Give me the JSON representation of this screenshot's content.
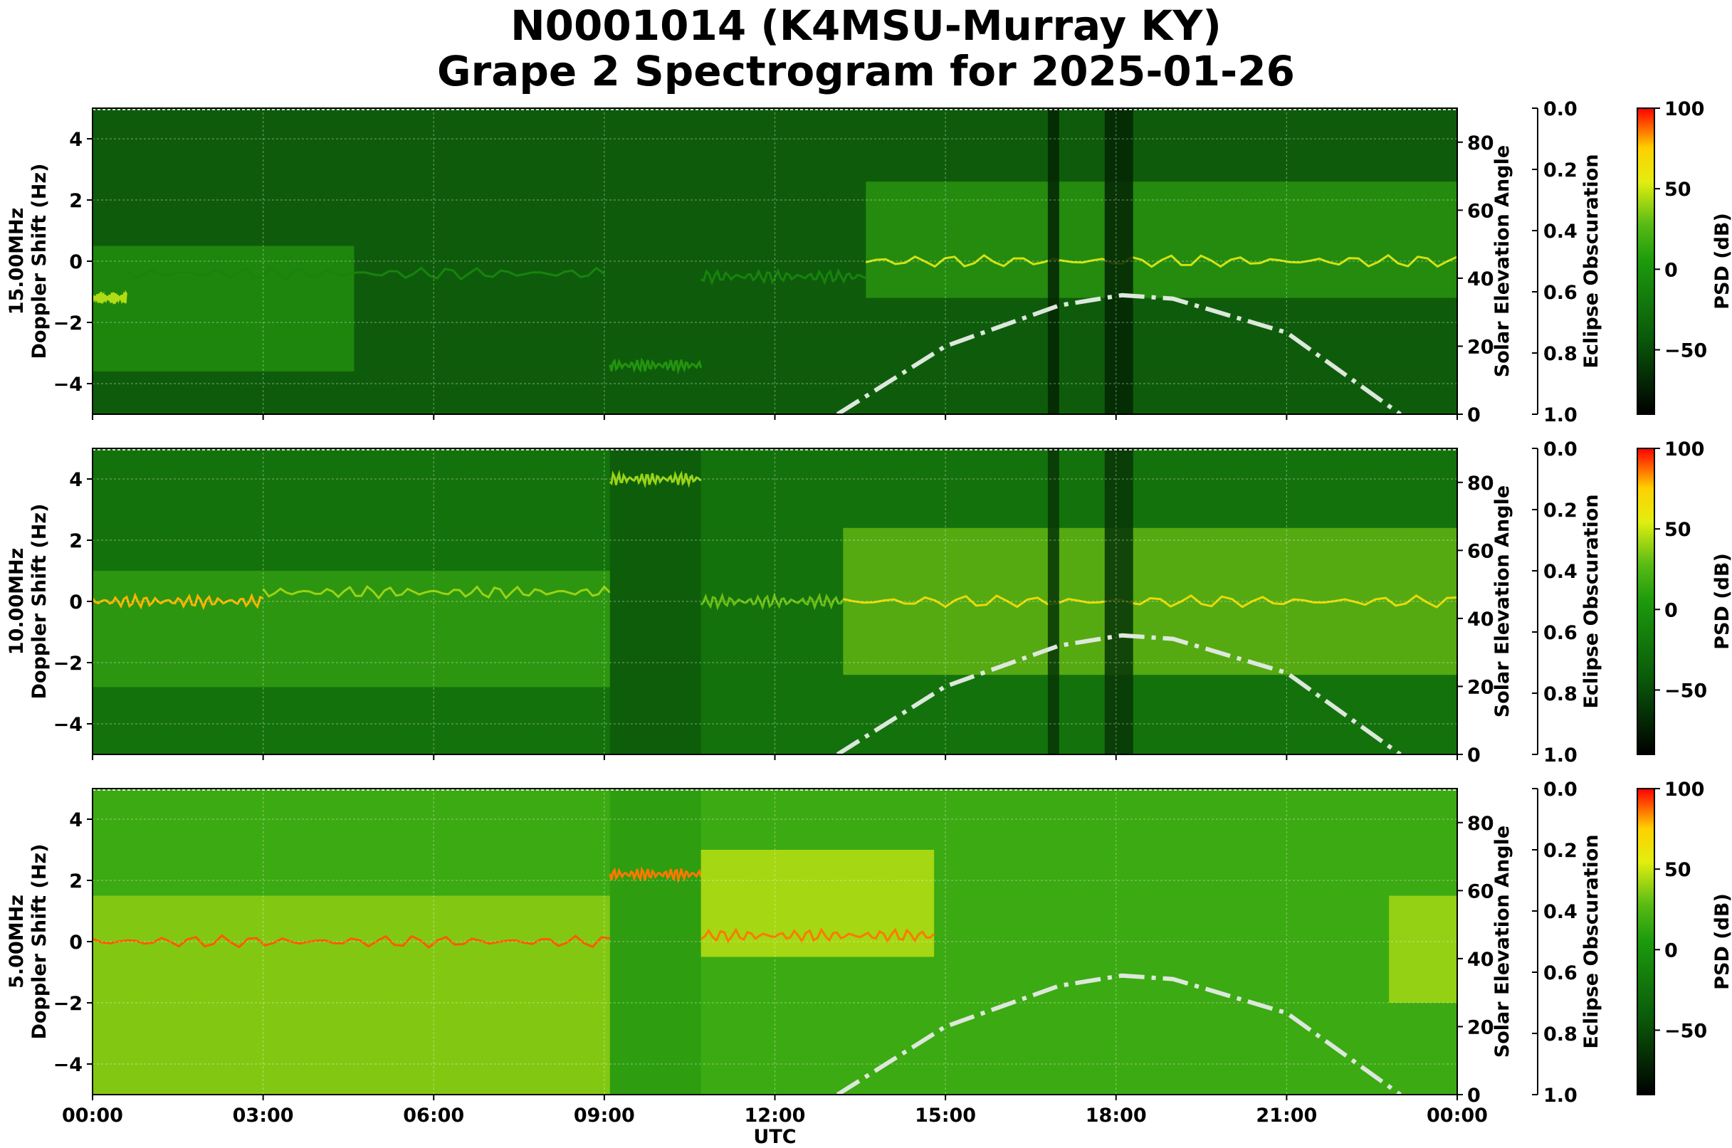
{
  "title": "N0001014 (K4MSU-Murray KY)",
  "subtitle": "Grape 2 Spectrogram for 2025-01-26",
  "chart_data": [
    {
      "type": "heatmap",
      "panel_label": "15.00MHz",
      "ylabel": "Doppler Shift (Hz)",
      "xlabel": "",
      "ylim": [
        -5,
        5
      ],
      "xlim_hours": [
        0,
        24
      ],
      "yticks": [
        4,
        2,
        0,
        -2,
        -4
      ],
      "secondary_y": {
        "label": "Solar Elevation Angle",
        "ylim": [
          0,
          90
        ],
        "ticks": [
          0,
          20,
          40,
          60,
          80
        ]
      },
      "eclipse_axis": {
        "label": "Eclipse Obscuration",
        "ticks": [
          "0.0",
          "0.2",
          "0.4",
          "0.6",
          "0.8",
          "1.0"
        ]
      },
      "colorbar": {
        "label": "PSD (dB)",
        "ticks": [
          "100",
          "50",
          "0",
          "−50"
        ],
        "range": [
          -90,
          100
        ]
      },
      "base_level_db": -38,
      "features": [
        {
          "kind": "band",
          "t0": 0,
          "t1": 4.6,
          "f0": -3.6,
          "f1": 0.5,
          "db": -5
        },
        {
          "kind": "line",
          "t0": 0,
          "t1": 0.6,
          "f": -1.2,
          "db": 35
        },
        {
          "kind": "line",
          "t0": 0.6,
          "t1": 9.0,
          "f": -0.4,
          "db": -15
        },
        {
          "kind": "line",
          "t0": 9.1,
          "t1": 10.7,
          "f": -3.4,
          "db": -5
        },
        {
          "kind": "line",
          "t0": 10.7,
          "t1": 13.6,
          "f": -0.5,
          "db": -15
        },
        {
          "kind": "band",
          "t0": 13.6,
          "t1": 24,
          "f0": -1.2,
          "f1": 2.6,
          "db": 0
        },
        {
          "kind": "line",
          "t0": 13.6,
          "t1": 24,
          "f": 0.0,
          "db": 45
        },
        {
          "kind": "dark",
          "t0": 16.8,
          "t1": 17.0,
          "db": -70
        },
        {
          "kind": "dark",
          "t0": 17.8,
          "t1": 18.3,
          "db": -70
        }
      ],
      "solar_elevation": {
        "t": [
          13.1,
          15.0,
          17.0,
          18.1,
          19.0,
          21.0,
          23.0
        ],
        "deg": [
          0,
          20,
          32,
          35,
          34,
          24,
          0
        ]
      }
    },
    {
      "type": "heatmap",
      "panel_label": "10.00MHz",
      "ylabel": "Doppler Shift (Hz)",
      "xlabel": "",
      "ylim": [
        -5,
        5
      ],
      "xlim_hours": [
        0,
        24
      ],
      "yticks": [
        4,
        2,
        0,
        -2,
        -4
      ],
      "secondary_y": {
        "label": "Solar Elevation Angle",
        "ylim": [
          0,
          90
        ],
        "ticks": [
          0,
          20,
          40,
          60,
          80
        ]
      },
      "eclipse_axis": {
        "label": "Eclipse Obscuration",
        "ticks": [
          "0.0",
          "0.2",
          "0.4",
          "0.6",
          "0.8",
          "1.0"
        ]
      },
      "colorbar": {
        "label": "PSD (dB)",
        "ticks": [
          "100",
          "50",
          "0",
          "−50"
        ],
        "range": [
          -90,
          100
        ]
      },
      "base_level_db": -25,
      "features": [
        {
          "kind": "band",
          "t0": 0,
          "t1": 9.1,
          "f0": -2.8,
          "f1": 1.0,
          "db": 5
        },
        {
          "kind": "line",
          "t0": 0,
          "t1": 3.0,
          "f": 0.0,
          "db": 70
        },
        {
          "kind": "line",
          "t0": 3.0,
          "t1": 9.1,
          "f": 0.3,
          "db": 30
        },
        {
          "kind": "dark",
          "t0": 9.1,
          "t1": 10.7,
          "db": -40
        },
        {
          "kind": "line",
          "t0": 9.1,
          "t1": 10.7,
          "f": 4.0,
          "db": 30
        },
        {
          "kind": "line",
          "t0": 10.7,
          "t1": 13.2,
          "f": 0.0,
          "db": 20
        },
        {
          "kind": "band",
          "t0": 13.2,
          "t1": 24,
          "f0": -2.4,
          "f1": 2.4,
          "db": 20
        },
        {
          "kind": "line",
          "t0": 13.2,
          "t1": 24,
          "f": 0.0,
          "db": 55
        },
        {
          "kind": "dark",
          "t0": 16.8,
          "t1": 17.0,
          "db": -60
        },
        {
          "kind": "dark",
          "t0": 17.8,
          "t1": 18.3,
          "db": -60
        }
      ],
      "solar_elevation": {
        "t": [
          13.1,
          15.0,
          17.0,
          18.1,
          19.0,
          21.0,
          23.0
        ],
        "deg": [
          0,
          20,
          32,
          35,
          34,
          24,
          0
        ]
      }
    },
    {
      "type": "heatmap",
      "panel_label": "5.00MHz",
      "ylabel": "Doppler Shift (Hz)",
      "xlabel": "UTC",
      "ylim": [
        -5,
        5
      ],
      "xlim_hours": [
        0,
        24
      ],
      "xticks": [
        "00:00",
        "03:00",
        "06:00",
        "09:00",
        "12:00",
        "15:00",
        "18:00",
        "21:00",
        "00:00"
      ],
      "yticks": [
        4,
        2,
        0,
        -2,
        -4
      ],
      "secondary_y": {
        "label": "Solar Elevation Angle",
        "ylim": [
          0,
          90
        ],
        "ticks": [
          0,
          20,
          40,
          60,
          80
        ]
      },
      "eclipse_axis": {
        "label": "Eclipse Obscuration",
        "ticks": [
          "0.0",
          "0.2",
          "0.4",
          "0.6",
          "0.8",
          "1.0"
        ]
      },
      "colorbar": {
        "label": "PSD (dB)",
        "ticks": [
          "100",
          "50",
          "0",
          "−50"
        ],
        "range": [
          -90,
          100
        ]
      },
      "base_level_db": 10,
      "features": [
        {
          "kind": "band",
          "t0": 0,
          "t1": 9.1,
          "f0": -5,
          "f1": 1.5,
          "db": 30
        },
        {
          "kind": "line",
          "t0": 0,
          "t1": 9.1,
          "f": 0.0,
          "db": 85
        },
        {
          "kind": "dark",
          "t0": 9.1,
          "t1": 10.7,
          "db": 0
        },
        {
          "kind": "line",
          "t0": 9.1,
          "t1": 10.7,
          "f": 2.2,
          "db": 80
        },
        {
          "kind": "band",
          "t0": 10.7,
          "t1": 14.8,
          "f0": -0.5,
          "f1": 3.0,
          "db": 40
        },
        {
          "kind": "line",
          "t0": 10.7,
          "t1": 14.8,
          "f": 0.2,
          "db": 80
        },
        {
          "kind": "band",
          "t0": 22.8,
          "t1": 24,
          "f0": -2.0,
          "f1": 1.5,
          "db": 35
        }
      ],
      "solar_elevation": {
        "t": [
          13.1,
          15.0,
          17.0,
          18.1,
          19.0,
          21.0,
          23.0
        ],
        "deg": [
          0,
          20,
          32,
          35,
          34,
          24,
          0
        ]
      }
    }
  ]
}
